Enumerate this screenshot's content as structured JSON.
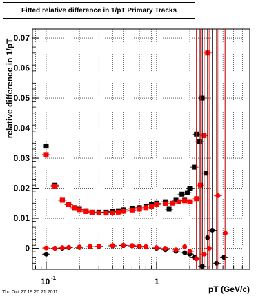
{
  "title": "Fitted relative difference in 1/pT  Primary Tracks",
  "footer": "Thu Oct 27 19:20:21 2011",
  "chart_data": {
    "type": "scatter",
    "xlabel": "pT (GeV/c)",
    "ylabel": "relative difference in 1/pT",
    "x_scale": "log",
    "xlim": [
      0.075,
      7
    ],
    "ylim": [
      -0.007,
      0.073
    ],
    "y_ticks": [
      "0",
      "0.01",
      "0.02",
      "0.03",
      "0.04",
      "0.05",
      "0.06",
      "0.07"
    ],
    "x_tick_labels": [
      {
        "value": 0.1,
        "label": "10",
        "exp": "-1"
      },
      {
        "value": 1,
        "label": "1",
        "exp": ""
      }
    ],
    "grid": true,
    "legend": "none",
    "series": [
      {
        "color": "#000000",
        "marker": "square",
        "points": [
          [
            0.1,
            0.034
          ],
          [
            0.12,
            0.021
          ],
          [
            0.14,
            0.016
          ],
          [
            0.16,
            0.0145
          ],
          [
            0.18,
            0.0135
          ],
          [
            0.2,
            0.013
          ],
          [
            0.23,
            0.0125
          ],
          [
            0.26,
            0.012
          ],
          [
            0.3,
            0.012
          ],
          [
            0.35,
            0.012
          ],
          [
            0.4,
            0.0122
          ],
          [
            0.45,
            0.0125
          ],
          [
            0.5,
            0.0128
          ],
          [
            0.6,
            0.0132
          ],
          [
            0.7,
            0.0135
          ],
          [
            0.8,
            0.014
          ],
          [
            0.9,
            0.0145
          ],
          [
            1.0,
            0.015
          ],
          [
            1.2,
            0.0155
          ],
          [
            1.3,
            0.013
          ],
          [
            1.5,
            0.016
          ],
          [
            1.7,
            0.018
          ],
          [
            1.8,
            0.016
          ],
          [
            1.9,
            0.0185
          ],
          [
            2.0,
            0.02
          ],
          [
            2.2,
            0.027
          ],
          [
            2.3,
            0.038
          ],
          [
            2.45,
            0.0355
          ],
          [
            2.6,
            0.05
          ],
          [
            2.8,
            0.025
          ]
        ]
      },
      {
        "color": "#ff0000",
        "marker": "square",
        "points": [
          [
            0.1,
            0.0312
          ],
          [
            0.12,
            0.0205
          ],
          [
            0.14,
            0.016
          ],
          [
            0.16,
            0.0145
          ],
          [
            0.18,
            0.0135
          ],
          [
            0.2,
            0.0128
          ],
          [
            0.23,
            0.0122
          ],
          [
            0.26,
            0.012
          ],
          [
            0.3,
            0.0118
          ],
          [
            0.35,
            0.0117
          ],
          [
            0.4,
            0.0118
          ],
          [
            0.45,
            0.012
          ],
          [
            0.5,
            0.0123
          ],
          [
            0.6,
            0.0127
          ],
          [
            0.7,
            0.013
          ],
          [
            0.8,
            0.0135
          ],
          [
            0.9,
            0.014
          ],
          [
            1.0,
            0.0145
          ],
          [
            1.2,
            0.0148
          ],
          [
            1.4,
            0.015
          ],
          [
            1.6,
            0.0155
          ],
          [
            1.8,
            0.0158
          ],
          [
            2.0,
            0.0155
          ],
          [
            2.3,
            0.0165
          ],
          [
            2.5,
            0.021
          ],
          [
            2.7,
            0.0375
          ],
          [
            2.9,
            0.065
          ]
        ]
      },
      {
        "color": "#000000",
        "marker": "circle",
        "points": [
          [
            0.1,
            -0.002
          ],
          [
            0.12,
            0.0
          ],
          [
            0.14,
            0.0
          ],
          [
            0.16,
            0.0002
          ],
          [
            0.2,
            0.0003
          ],
          [
            0.25,
            0.0005
          ],
          [
            0.3,
            0.0006
          ],
          [
            0.4,
            0.0008
          ],
          [
            0.5,
            0.0009
          ],
          [
            0.6,
            0.0008
          ],
          [
            0.7,
            0.0006
          ],
          [
            0.8,
            0.0004
          ],
          [
            1.0,
            0.0
          ],
          [
            1.2,
            -0.0005
          ],
          [
            1.5,
            -0.001
          ],
          [
            1.8,
            -0.0015
          ],
          [
            2.0,
            -0.002
          ],
          [
            2.2,
            -0.003
          ],
          [
            2.6,
            -0.006
          ],
          [
            2.9,
            0.0035
          ],
          [
            3.2,
            0.006
          ],
          [
            3.5,
            -0.005
          ],
          [
            4.1,
            -0.003
          ]
        ]
      },
      {
        "color": "#ff0000",
        "marker": "circle",
        "points": [
          [
            0.1,
            0.0001
          ],
          [
            0.12,
            0.0
          ],
          [
            0.14,
            0.0002
          ],
          [
            0.16,
            0.0003
          ],
          [
            0.2,
            0.0004
          ],
          [
            0.25,
            0.0006
          ],
          [
            0.3,
            0.0007
          ],
          [
            0.4,
            0.0009
          ],
          [
            0.5,
            0.001
          ],
          [
            0.6,
            0.0009
          ],
          [
            0.7,
            0.0007
          ],
          [
            0.8,
            0.0005
          ],
          [
            1.0,
            0.0002
          ],
          [
            1.2,
            0.0
          ],
          [
            1.5,
            -0.0005
          ],
          [
            1.8,
            0.0005
          ],
          [
            2.0,
            -0.001
          ],
          [
            2.3,
            -0.0035
          ],
          [
            2.7,
            -0.002
          ],
          [
            3.0,
            0.0
          ],
          [
            3.6,
            0.0175
          ],
          [
            4.2,
            0.005
          ]
        ]
      }
    ]
  }
}
